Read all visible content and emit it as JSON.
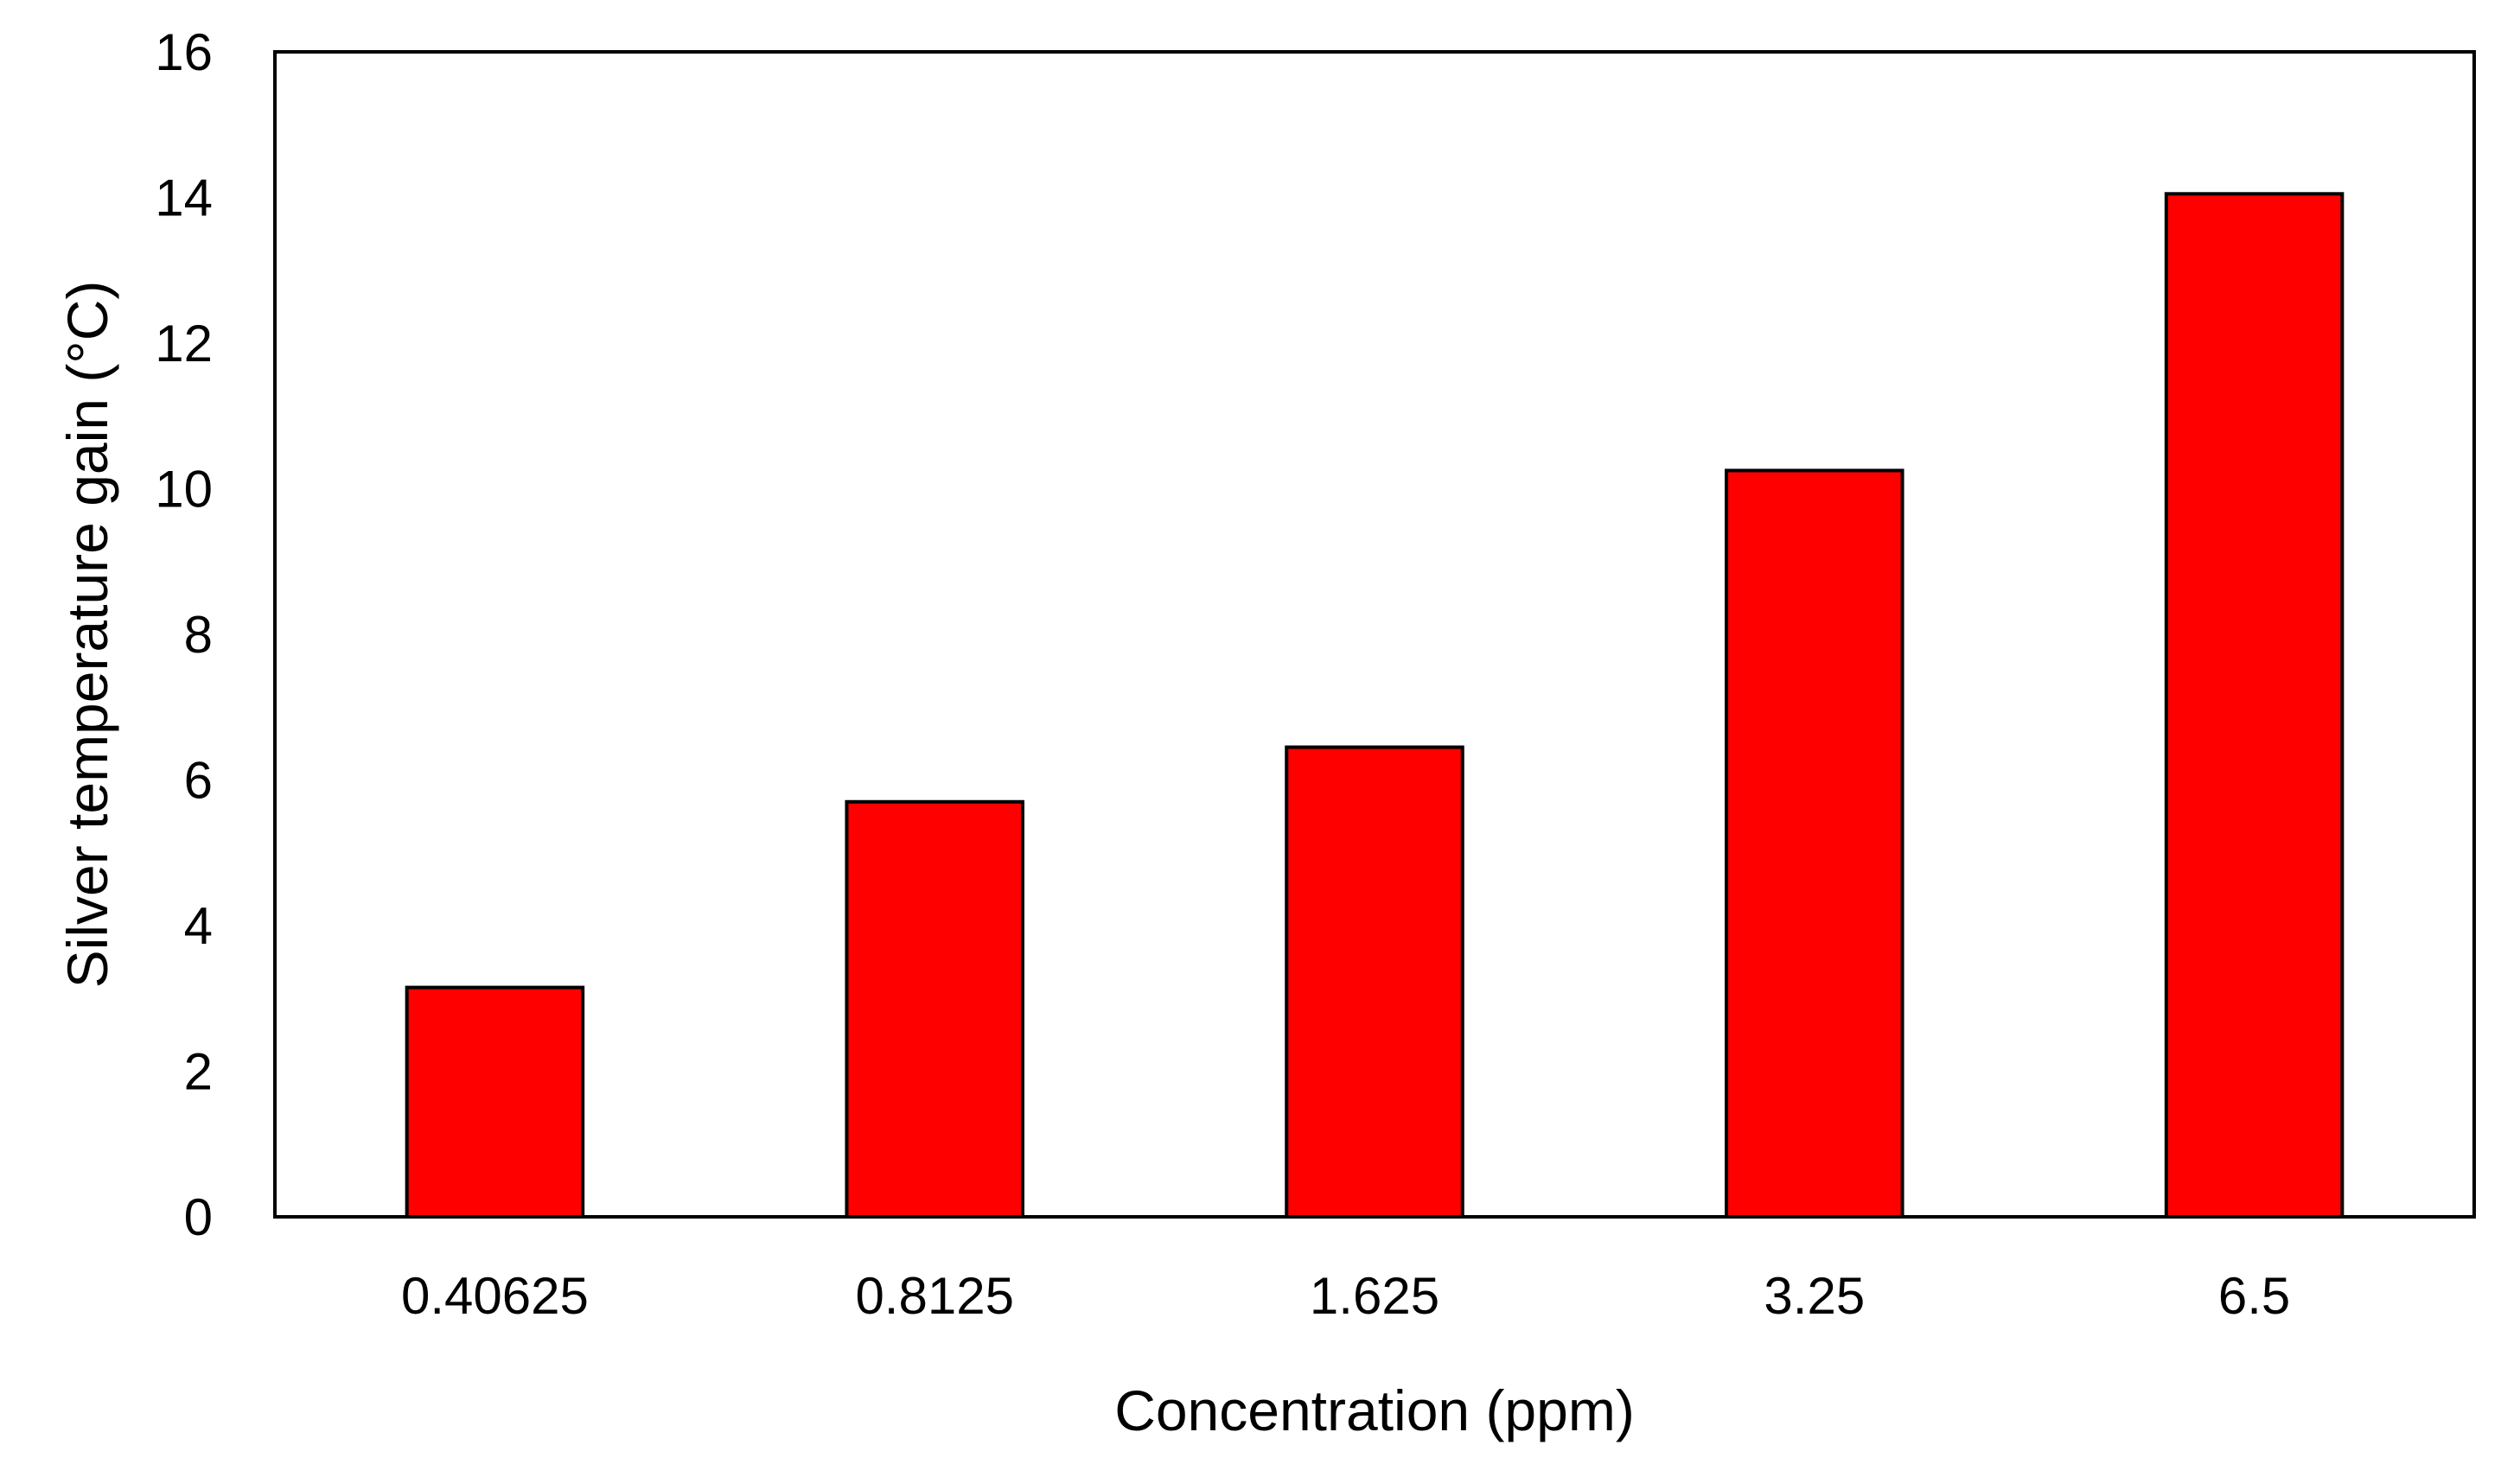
{
  "chart_data": {
    "type": "bar",
    "title": "",
    "xlabel": "Concentration  (ppm)",
    "ylabel": "Silver temperature gain (°C)",
    "categories": [
      "0.40625",
      "0.8125",
      "1.625",
      "3.25",
      "6.5"
    ],
    "values": [
      3.15,
      5.7,
      6.45,
      10.25,
      14.05
    ],
    "ylim": [
      0,
      16
    ],
    "yticks": [
      0,
      2,
      4,
      6,
      8,
      10,
      12,
      14,
      16
    ],
    "ytick_labels": [
      "0",
      "2",
      "4",
      "6",
      "8",
      "10",
      "12",
      "14",
      "16"
    ],
    "grid": false,
    "legend": "none",
    "bar_color": "#ff0000",
    "bar_edge_color": "#000000"
  }
}
